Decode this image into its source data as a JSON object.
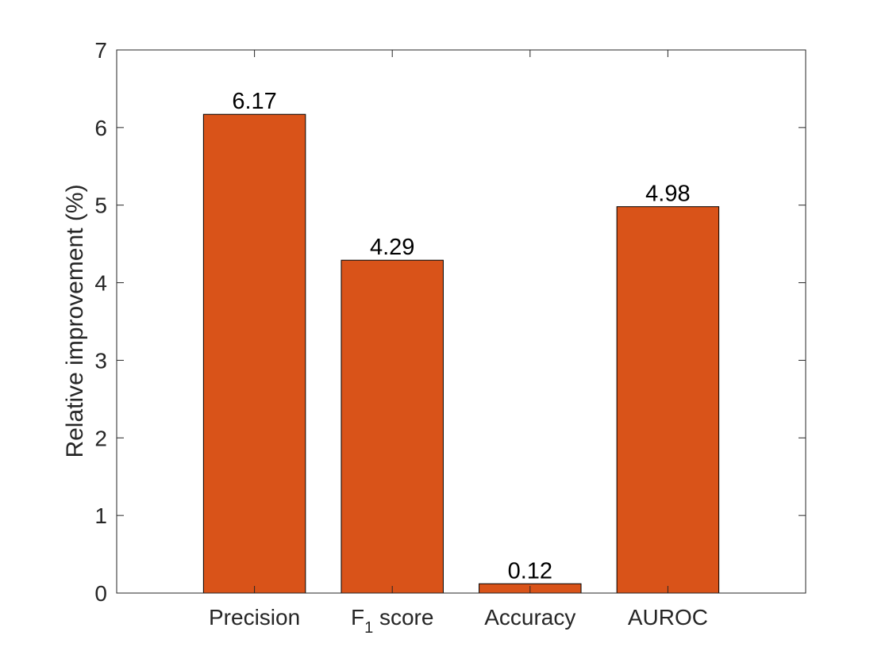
{
  "chart_data": {
    "type": "bar",
    "categories": [
      {
        "text": "Precision",
        "sub": ""
      },
      {
        "text": "F",
        "sub": "1",
        "tail": " score"
      },
      {
        "text": "Accuracy",
        "sub": ""
      },
      {
        "text": "AUROC",
        "sub": ""
      }
    ],
    "values": [
      6.17,
      4.29,
      0.12,
      4.98
    ],
    "data_labels": [
      "6.17",
      "4.29",
      "0.12",
      "4.98"
    ],
    "title": "",
    "xlabel": "",
    "ylabel": "Relative improvement (%)",
    "ylim": [
      0,
      7
    ],
    "yticks": [
      "0",
      "1",
      "2",
      "3",
      "4",
      "5",
      "6",
      "7"
    ],
    "grid": false,
    "legend": "none",
    "bar_color": "#D95319",
    "axis_color": "#262626"
  }
}
